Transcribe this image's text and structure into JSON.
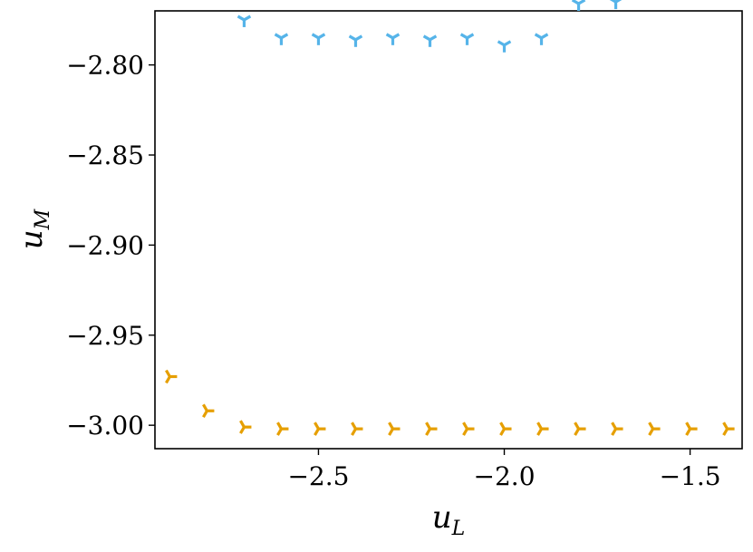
{
  "chart_data": {
    "type": "scatter",
    "title": "",
    "xlabel": "u",
    "xlabel_sub": "L",
    "ylabel": "u",
    "ylabel_sub": "M",
    "xlim": [
      -2.94,
      -1.36
    ],
    "ylim": [
      -3.013,
      -2.77
    ],
    "x_ticks": [
      -2.5,
      -2.0,
      -1.5
    ],
    "x_tick_labels": [
      "−2.5",
      "−2.0",
      "−1.5"
    ],
    "y_ticks": [
      -2.8,
      -2.85,
      -2.9,
      -2.95,
      -3.0
    ],
    "y_tick_labels": [
      "−2.80",
      "−2.85",
      "−2.90",
      "−2.95",
      "−3.00"
    ],
    "grid": false,
    "legend": "none",
    "series": [
      {
        "marker": "tri_down",
        "color": "#56B4E9",
        "x": [
          -2.7,
          -2.6,
          -2.5,
          -2.4,
          -2.3,
          -2.2,
          -2.1,
          -2.0,
          -1.9,
          -1.8,
          -1.7
        ],
        "y": [
          -2.775,
          -2.785,
          -2.785,
          -2.786,
          -2.785,
          -2.786,
          -2.785,
          -2.789,
          -2.785,
          -2.766,
          -2.765
        ]
      },
      {
        "marker": "tri_right",
        "color": "#E69F00",
        "x": [
          -2.9,
          -2.8,
          -2.7,
          -2.6,
          -2.5,
          -2.4,
          -2.3,
          -2.2,
          -2.1,
          -2.0,
          -1.9,
          -1.8,
          -1.7,
          -1.6,
          -1.5,
          -1.4
        ],
        "y": [
          -2.973,
          -2.992,
          -3.001,
          -3.002,
          -3.002,
          -3.002,
          -3.002,
          -3.002,
          -3.002,
          -3.002,
          -3.002,
          -3.002,
          -3.002,
          -3.002,
          -3.002,
          -3.002
        ]
      }
    ]
  }
}
